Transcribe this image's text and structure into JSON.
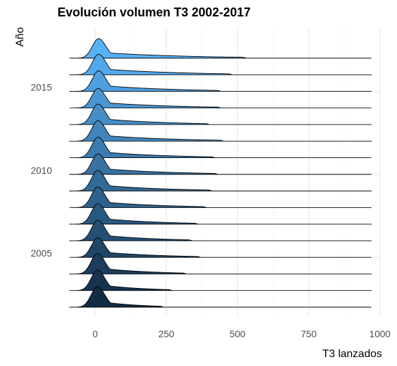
{
  "chart_data": {
    "type": "ridgeline",
    "title": "Evolución volumen T3 2002-2017",
    "xlabel": "T3 lanzados",
    "ylabel": "Año",
    "xlim": [
      -90,
      1000
    ],
    "x_ticks": [
      0,
      250,
      500,
      750,
      1000
    ],
    "y_ticks": [
      2005,
      2010,
      2015
    ],
    "grid": true,
    "color_low": "#132B43",
    "color_high": "#56B1F7",
    "series": [
      {
        "year": 2002,
        "mode": 8,
        "peak": 1.0,
        "tail_end": 230
      },
      {
        "year": 2003,
        "mode": 8,
        "peak": 1.0,
        "tail_end": 260
      },
      {
        "year": 2004,
        "mode": 8,
        "peak": 1.0,
        "tail_end": 310
      },
      {
        "year": 2005,
        "mode": 9,
        "peak": 0.95,
        "tail_end": 360
      },
      {
        "year": 2006,
        "mode": 9,
        "peak": 1.0,
        "tail_end": 330
      },
      {
        "year": 2007,
        "mode": 9,
        "peak": 1.0,
        "tail_end": 350
      },
      {
        "year": 2008,
        "mode": 9,
        "peak": 1.0,
        "tail_end": 380
      },
      {
        "year": 2009,
        "mode": 9,
        "peak": 1.0,
        "tail_end": 400
      },
      {
        "year": 2010,
        "mode": 10,
        "peak": 1.0,
        "tail_end": 420
      },
      {
        "year": 2011,
        "mode": 10,
        "peak": 1.0,
        "tail_end": 410
      },
      {
        "year": 2012,
        "mode": 10,
        "peak": 1.0,
        "tail_end": 440
      },
      {
        "year": 2013,
        "mode": 10,
        "peak": 1.0,
        "tail_end": 390
      },
      {
        "year": 2014,
        "mode": 10,
        "peak": 0.95,
        "tail_end": 430
      },
      {
        "year": 2015,
        "mode": 12,
        "peak": 1.0,
        "tail_end": 430
      },
      {
        "year": 2016,
        "mode": 12,
        "peak": 1.0,
        "tail_end": 470
      },
      {
        "year": 2017,
        "mode": 12,
        "peak": 0.95,
        "tail_end": 520
      }
    ]
  }
}
